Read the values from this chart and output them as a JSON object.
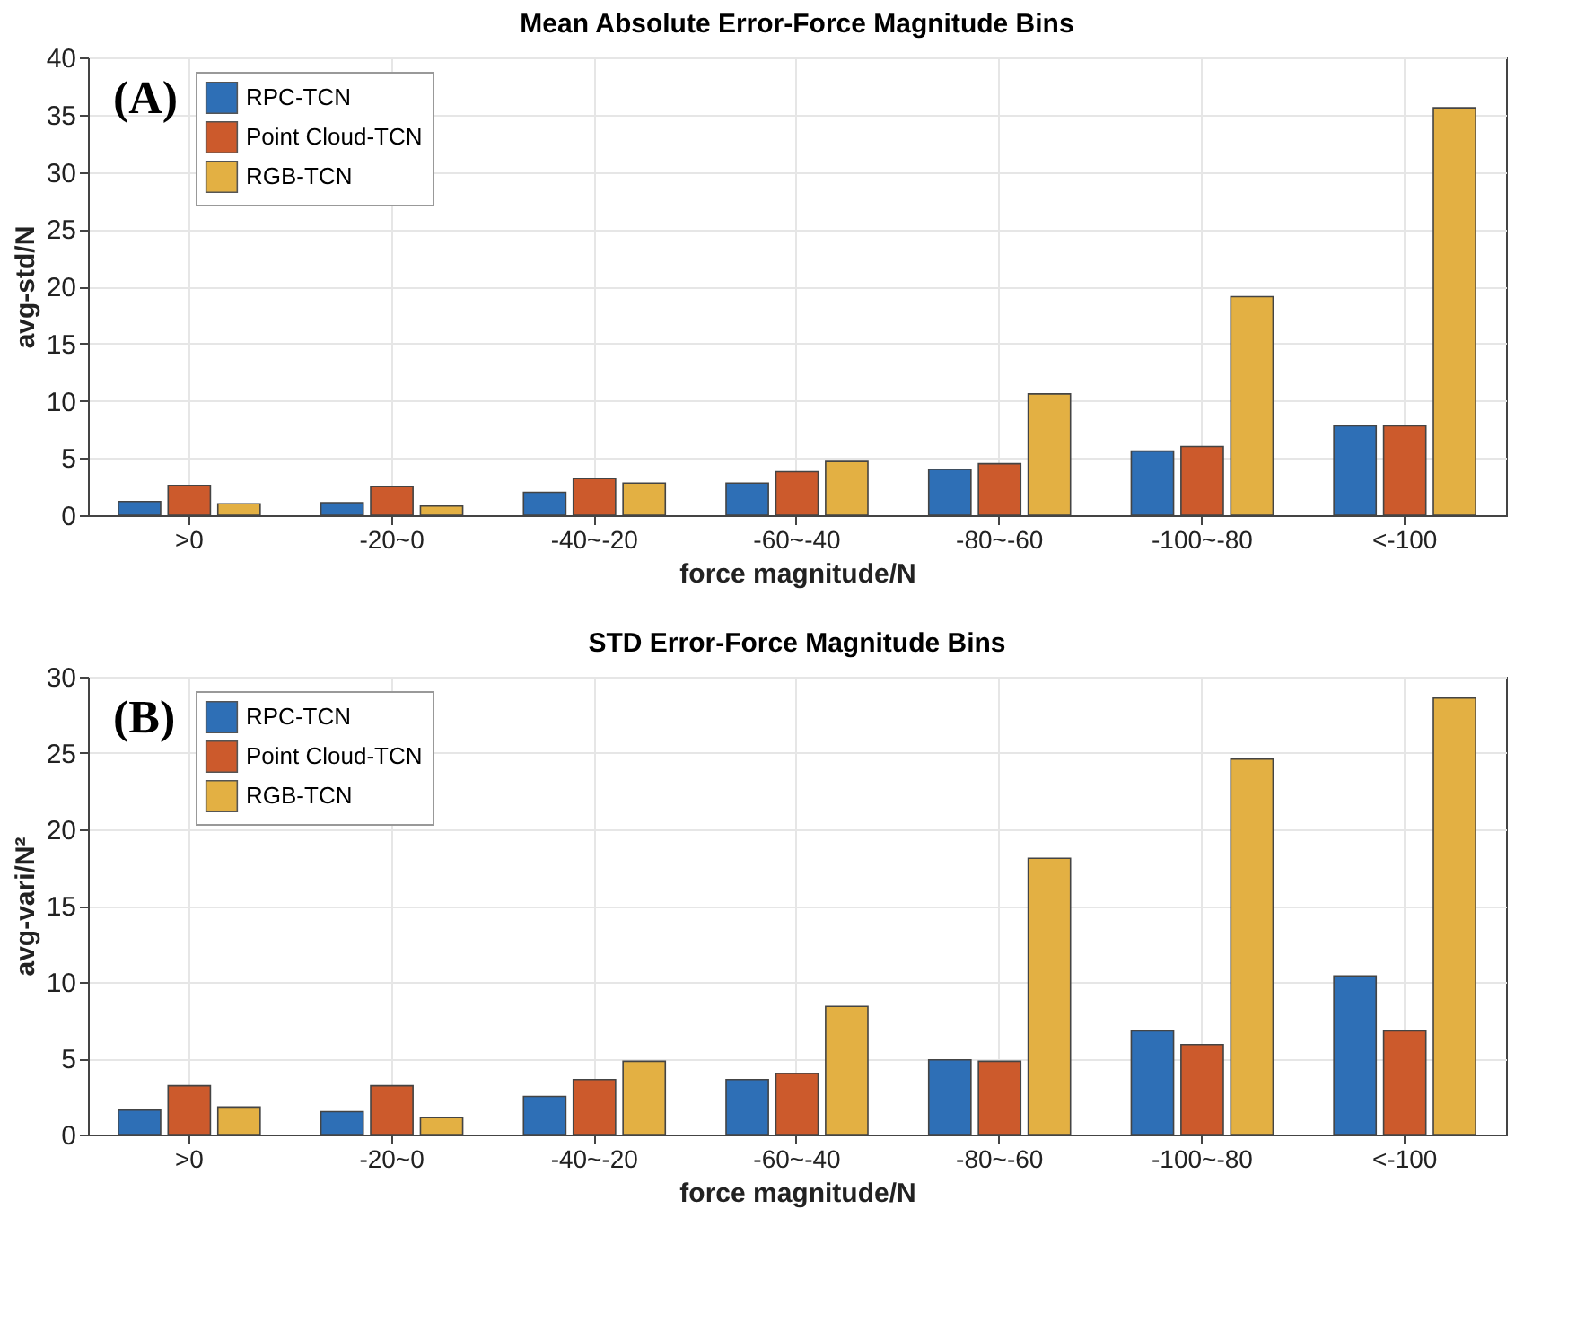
{
  "chart_data": [
    {
      "type": "bar",
      "title": "Mean Absolute Error-Force Magnitude Bins",
      "xlabel": "force magnitude/N",
      "ylabel": "avg-std/N",
      "categories": [
        ">0",
        "-20~0",
        "-40~-20",
        "-60~-40",
        "-80~-60",
        "-100~-80",
        "<-100"
      ],
      "series": [
        {
          "name": "RPC-TCN",
          "color": "#2e6fb6",
          "values": [
            1.2,
            1.1,
            2.0,
            2.8,
            4.0,
            5.6,
            7.8
          ]
        },
        {
          "name": "Point Cloud-TCN",
          "color": "#cc5a2c",
          "values": [
            2.6,
            2.5,
            3.2,
            3.8,
            4.5,
            6.0,
            7.8
          ]
        },
        {
          "name": "RGB-TCN",
          "color": "#e3b043",
          "values": [
            1.0,
            0.8,
            2.8,
            4.7,
            10.6,
            19.1,
            35.6
          ]
        }
      ],
      "ylim": [
        0,
        40
      ],
      "yticks": [
        0,
        5,
        10,
        15,
        20,
        25,
        30,
        35,
        40
      ],
      "grid": true,
      "legend": "top left",
      "annotations": [
        "(A)"
      ]
    },
    {
      "type": "bar",
      "title": "STD Error-Force Magnitude Bins",
      "xlabel": "force magnitude/N",
      "ylabel": "avg-vari/N²",
      "categories": [
        ">0",
        "-20~0",
        "-40~-20",
        "-60~-40",
        "-80~-60",
        "-100~-80",
        "<-100"
      ],
      "series": [
        {
          "name": "RPC-TCN",
          "color": "#2e6fb6",
          "values": [
            1.6,
            1.5,
            2.5,
            3.6,
            4.9,
            6.8,
            10.4
          ]
        },
        {
          "name": "Point Cloud-TCN",
          "color": "#cc5a2c",
          "values": [
            3.2,
            3.2,
            3.6,
            4.0,
            4.8,
            5.9,
            6.8
          ]
        },
        {
          "name": "RGB-TCN",
          "color": "#e3b043",
          "values": [
            1.8,
            1.1,
            4.8,
            8.4,
            18.1,
            24.6,
            28.6
          ]
        }
      ],
      "ylim": [
        0,
        30
      ],
      "yticks": [
        0,
        5,
        10,
        15,
        20,
        25,
        30
      ],
      "grid": true,
      "legend": "top left",
      "annotations": [
        "(B)"
      ]
    }
  ]
}
